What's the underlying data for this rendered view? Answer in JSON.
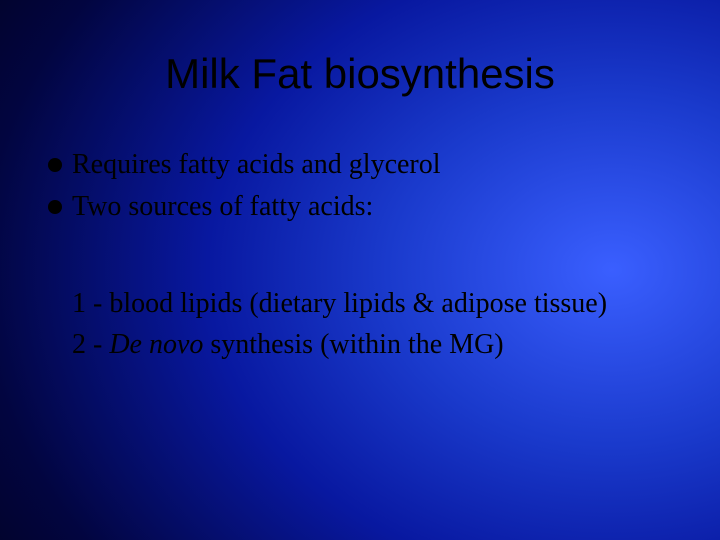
{
  "slide": {
    "title": "Milk Fat biosynthesis",
    "bullets": [
      {
        "text": "Requires fatty acids and glycerol"
      },
      {
        "text": "Two sources of fatty acids:"
      }
    ],
    "numbered": [
      {
        "prefix": "1 - ",
        "text": "blood lipids (dietary lipids & adipose tissue)"
      },
      {
        "prefix": "2 - ",
        "italic": "De novo",
        "rest": " synthesis (within the MG)"
      }
    ],
    "colors": {
      "text": "#000000",
      "bullet": "#000000",
      "bg_center": "#3a5fff",
      "bg_mid": "#0818a0",
      "bg_edge": "#000000"
    },
    "fonts": {
      "title_family": "Arial",
      "title_size_pt": 32,
      "body_family": "Times New Roman",
      "body_size_pt": 21
    }
  }
}
